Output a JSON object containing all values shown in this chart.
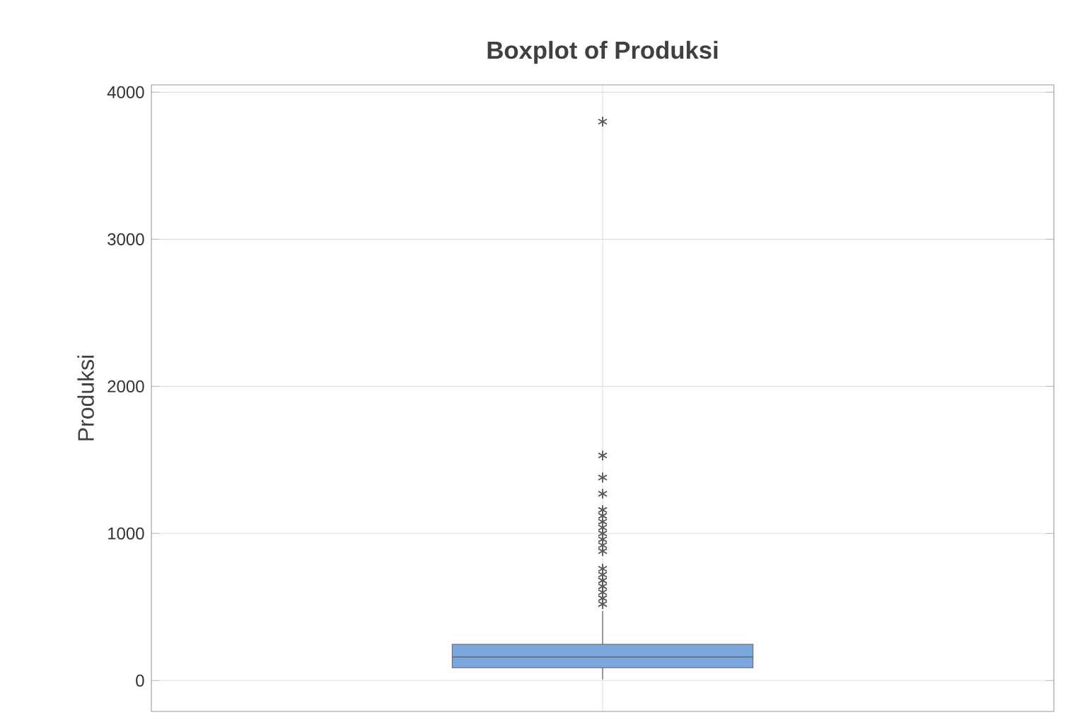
{
  "chart_data": {
    "type": "box",
    "title": "Boxplot of Produksi",
    "ylabel": "Produksi",
    "categories": [
      null
    ],
    "boxes": [
      {
        "low": 10,
        "q1": 87,
        "median": 160,
        "q3": 247,
        "high": 470,
        "outliers": [
          3800,
          1530,
          1380,
          1270,
          1160,
          1120,
          1080,
          1040,
          1000,
          960,
          920,
          880,
          760,
          720,
          680,
          640,
          600,
          560,
          520
        ]
      }
    ],
    "color": "#7aa6dc",
    "ylim": [
      -210,
      4050
    ],
    "yticks": [
      0,
      1000,
      2000,
      3000,
      4000
    ],
    "grid": true,
    "tick_labels": "y",
    "marker": "star"
  }
}
